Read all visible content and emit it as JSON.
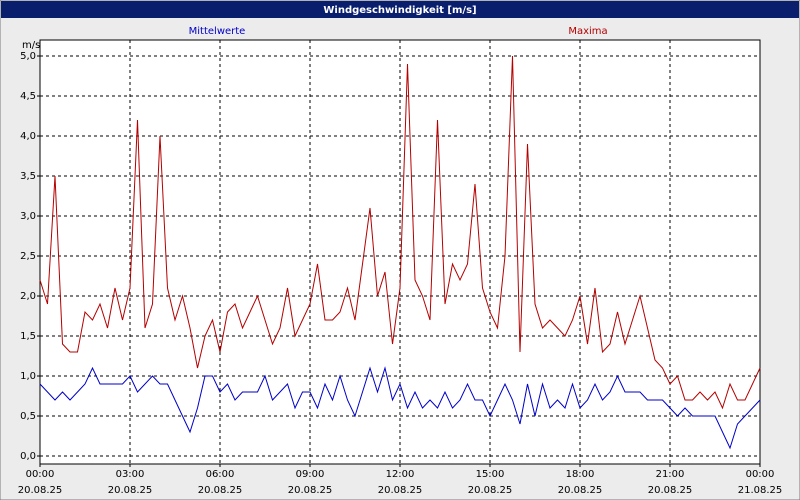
{
  "chart_data": {
    "type": "line",
    "title": "Windgeschwindigkeit [m/s]",
    "y_unit": "m/s",
    "x": [
      0,
      0.25,
      0.5,
      0.75,
      1,
      1.25,
      1.5,
      1.75,
      2,
      2.25,
      2.5,
      2.75,
      3,
      3.25,
      3.5,
      3.75,
      4,
      4.25,
      4.5,
      4.75,
      5,
      5.25,
      5.5,
      5.75,
      6,
      6.25,
      6.5,
      6.75,
      7,
      7.25,
      7.5,
      7.75,
      8,
      8.25,
      8.5,
      8.75,
      9,
      9.25,
      9.5,
      9.75,
      10,
      10.25,
      10.5,
      10.75,
      11,
      11.25,
      11.5,
      11.75,
      12,
      12.25,
      12.5,
      12.75,
      13,
      13.25,
      13.5,
      13.75,
      14,
      14.25,
      14.5,
      14.75,
      15,
      15.25,
      15.5,
      15.75,
      16,
      16.25,
      16.5,
      16.75,
      17,
      17.25,
      17.5,
      17.75,
      18,
      18.25,
      18.5,
      18.75,
      19,
      19.25,
      19.5,
      19.75,
      20,
      20.25,
      20.5,
      20.75,
      21,
      21.25,
      21.5,
      21.75,
      22,
      22.25,
      22.5,
      22.75,
      23,
      23.25,
      23.5,
      23.75,
      24
    ],
    "series": [
      {
        "name": "Mittelwerte",
        "color": "#0000c8",
        "values": [
          0.9,
          0.8,
          0.7,
          0.8,
          0.7,
          0.8,
          0.9,
          1.1,
          0.9,
          0.9,
          0.9,
          0.9,
          1.0,
          0.8,
          0.9,
          1.0,
          0.9,
          0.9,
          0.7,
          0.5,
          0.3,
          0.6,
          1.0,
          1.0,
          0.8,
          0.9,
          0.7,
          0.8,
          0.8,
          0.8,
          1.0,
          0.7,
          0.8,
          0.9,
          0.6,
          0.8,
          0.8,
          0.6,
          0.9,
          0.7,
          1.0,
          0.7,
          0.5,
          0.8,
          1.1,
          0.8,
          1.1,
          0.7,
          0.9,
          0.6,
          0.8,
          0.6,
          0.7,
          0.6,
          0.8,
          0.6,
          0.7,
          0.9,
          0.7,
          0.7,
          0.5,
          0.7,
          0.9,
          0.7,
          0.4,
          0.9,
          0.5,
          0.9,
          0.6,
          0.7,
          0.6,
          0.9,
          0.6,
          0.7,
          0.9,
          0.7,
          0.8,
          1.0,
          0.8,
          0.8,
          0.8,
          0.7,
          0.7,
          0.7,
          0.6,
          0.5,
          0.6,
          0.5,
          0.5,
          0.5,
          0.5,
          0.3,
          0.1,
          0.4,
          0.5,
          0.6,
          0.7
        ]
      },
      {
        "name": "Maxima",
        "color": "#b40000",
        "values": [
          2.2,
          1.9,
          3.5,
          1.4,
          1.3,
          1.3,
          1.8,
          1.7,
          1.9,
          1.6,
          2.1,
          1.7,
          2.1,
          4.2,
          1.6,
          1.9,
          4.0,
          2.1,
          1.7,
          2.0,
          1.6,
          1.1,
          1.5,
          1.7,
          1.3,
          1.8,
          1.9,
          1.6,
          1.8,
          2.0,
          1.7,
          1.4,
          1.6,
          2.1,
          1.5,
          1.7,
          1.9,
          2.4,
          1.7,
          1.7,
          1.8,
          2.1,
          1.7,
          2.4,
          3.1,
          2.0,
          2.3,
          1.4,
          2.1,
          4.9,
          2.2,
          2.0,
          1.7,
          4.2,
          1.9,
          2.4,
          2.2,
          2.4,
          3.4,
          2.1,
          1.8,
          1.6,
          2.5,
          5.0,
          1.3,
          3.9,
          1.9,
          1.6,
          1.7,
          1.6,
          1.5,
          1.7,
          2.0,
          1.4,
          2.1,
          1.3,
          1.4,
          1.8,
          1.4,
          1.7,
          2.0,
          1.6,
          1.2,
          1.1,
          0.9,
          1.0,
          0.7,
          0.7,
          0.8,
          0.7,
          0.8,
          0.6,
          0.9,
          0.7,
          0.7,
          0.9,
          1.1
        ]
      }
    ],
    "xlim": [
      0,
      24
    ],
    "xticks": [
      {
        "value": 0,
        "label": "00:00"
      },
      {
        "value": 3,
        "label": "03:00"
      },
      {
        "value": 6,
        "label": "06:00"
      },
      {
        "value": 9,
        "label": "09:00"
      },
      {
        "value": 12,
        "label": "12:00"
      },
      {
        "value": 15,
        "label": "15:00"
      },
      {
        "value": 18,
        "label": "18:00"
      },
      {
        "value": 21,
        "label": "21:00"
      },
      {
        "value": 24,
        "label": "00:00"
      }
    ],
    "xtick_dates": [
      "20.08.25",
      "20.08.25",
      "20.08.25",
      "20.08.25",
      "20.08.25",
      "20.08.25",
      "20.08.25",
      "20.08.25",
      "21.08.25"
    ],
    "ylim": [
      -0.1,
      5.2
    ],
    "yticks": [
      {
        "value": 0,
        "label": "0,0"
      },
      {
        "value": 0.5,
        "label": "0,5"
      },
      {
        "value": 1,
        "label": "1,0"
      },
      {
        "value": 1.5,
        "label": "1,5"
      },
      {
        "value": 2,
        "label": "2,0"
      },
      {
        "value": 2.5,
        "label": "2,5"
      },
      {
        "value": 3,
        "label": "3,0"
      },
      {
        "value": 3.5,
        "label": "3,5"
      },
      {
        "value": 4,
        "label": "4,0"
      },
      {
        "value": 4.5,
        "label": "4,5"
      },
      {
        "value": 5,
        "label": "5,0"
      }
    ],
    "grid": true
  }
}
